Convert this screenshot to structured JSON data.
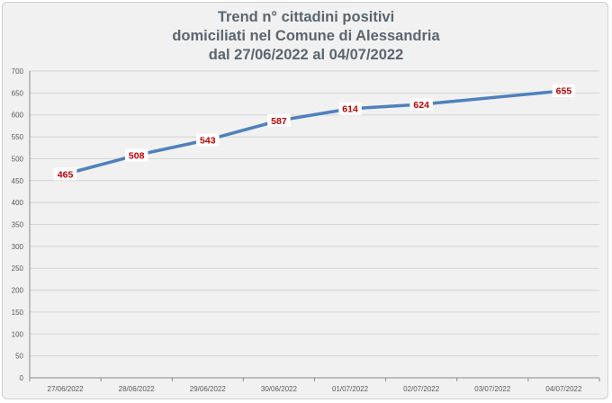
{
  "chart_data": {
    "type": "line",
    "title_lines": [
      "Trend n° cittadini positivi",
      "domiciliati nel Comune di Alessandria",
      "dal 27/06/2022 al 04/07/2022"
    ],
    "categories": [
      "27/06/2022",
      "28/06/2022",
      "29/06/2022",
      "30/06/2022",
      "01/07/2022",
      "02/07/2022",
      "03/07/2022",
      "04/07/2022"
    ],
    "series": [
      {
        "values": [
          465,
          508,
          543,
          587,
          614,
          624,
          null,
          655
        ],
        "data_labels": [
          "465",
          "508",
          "543",
          "587",
          "614",
          "624",
          "",
          "655"
        ],
        "color": "#4f81bd"
      }
    ],
    "ylim": [
      0,
      700
    ],
    "y_ticks": [
      "0",
      "50",
      "100",
      "150",
      "200",
      "250",
      "300",
      "350",
      "400",
      "450",
      "500",
      "550",
      "600",
      "650",
      "700"
    ],
    "xlabel": "",
    "ylabel": "",
    "grid": true,
    "legend": "none"
  }
}
